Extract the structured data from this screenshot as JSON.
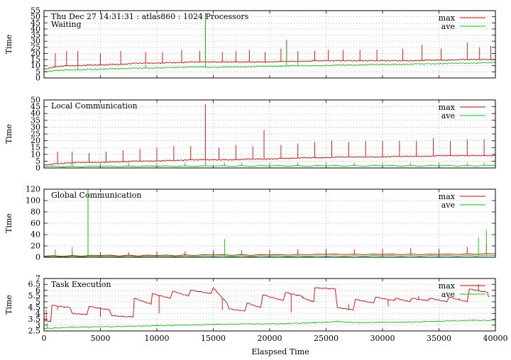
{
  "chart_data": [
    {
      "type": "line",
      "title": "Thu Dec 27 14:31:31 : atlas860 : 1024 Processors",
      "subtitle": "Waiting",
      "ylabel": "Time",
      "xlim": [
        0,
        40000
      ],
      "ylim": [
        0,
        55
      ],
      "yticks": [
        "0",
        "5",
        "10",
        "15",
        "20",
        "25",
        "30",
        "35",
        "40",
        "45",
        "50",
        "55"
      ],
      "ytick_values": [
        0,
        5,
        10,
        15,
        20,
        25,
        30,
        35,
        40,
        45,
        50,
        55
      ],
      "grid": true,
      "legend": "top-right",
      "series": [
        {
          "name": "max",
          "color": "#e00000",
          "x": [
            0,
            1000,
            2000,
            3000,
            4000,
            5000,
            6000,
            7000,
            8000,
            9000,
            10000,
            11000,
            12000,
            13000,
            14000,
            15000,
            16000,
            17000,
            18000,
            19000,
            20000,
            21000,
            22000,
            23000,
            24000,
            25000,
            26000,
            27000,
            28000,
            29000,
            30000,
            31000,
            32000,
            33000,
            34000,
            35000,
            36000,
            37000,
            38000,
            39000,
            40000
          ],
          "y": [
            7,
            9,
            10,
            10,
            10.5,
            10.5,
            11,
            11,
            12,
            12,
            12,
            12.5,
            12.5,
            13,
            13,
            13,
            13,
            13,
            13,
            13,
            13,
            13.5,
            13.5,
            13.5,
            14,
            14,
            14,
            14,
            14,
            14,
            14,
            14,
            14,
            14,
            14.5,
            14.5,
            14.5,
            15,
            15,
            15,
            15
          ],
          "spikes": [
            [
              1000,
              20
            ],
            [
              2000,
              22
            ],
            [
              3000,
              22
            ],
            [
              5000,
              20
            ],
            [
              6800,
              22
            ],
            [
              9000,
              21
            ],
            [
              10500,
              21
            ],
            [
              12200,
              23
            ],
            [
              13800,
              22
            ],
            [
              14300,
              53
            ],
            [
              15800,
              21
            ],
            [
              17000,
              22
            ],
            [
              18200,
              23
            ],
            [
              19600,
              21
            ],
            [
              21000,
              24
            ],
            [
              21500,
              31
            ],
            [
              22500,
              22
            ],
            [
              24000,
              22
            ],
            [
              25200,
              23
            ],
            [
              26500,
              23
            ],
            [
              28000,
              23
            ],
            [
              29500,
              23
            ],
            [
              31800,
              24
            ],
            [
              33500,
              27
            ],
            [
              35200,
              24
            ],
            [
              37500,
              29
            ],
            [
              38600,
              25
            ],
            [
              39600,
              26
            ]
          ]
        },
        {
          "name": "ave",
          "color": "#00cc00",
          "x": [
            0,
            1000,
            2000,
            3000,
            4000,
            5000,
            6000,
            7000,
            8000,
            9000,
            10000,
            11000,
            12000,
            13000,
            14000,
            15000,
            16000,
            17000,
            18000,
            19000,
            20000,
            21000,
            22000,
            23000,
            24000,
            25000,
            26000,
            27000,
            28000,
            29000,
            30000,
            31000,
            32000,
            33000,
            34000,
            35000,
            36000,
            37000,
            38000,
            39000,
            40000
          ],
          "y": [
            5,
            6,
            6.5,
            6.5,
            7,
            7,
            7.5,
            7.5,
            8,
            8,
            8,
            8.5,
            8.5,
            9,
            9,
            8.5,
            9,
            9,
            9,
            9.5,
            9.5,
            9.5,
            10,
            10,
            10,
            10,
            10.5,
            10.5,
            10.5,
            11,
            11,
            11,
            11,
            11.5,
            11.5,
            11.5,
            12,
            12,
            12,
            12.5,
            12.5
          ],
          "spikes": [
            [
              14300,
              50
            ],
            [
              21500,
              25
            ],
            [
              3000,
              10
            ],
            [
              9000,
              11
            ],
            [
              22500,
              19
            ]
          ]
        }
      ]
    },
    {
      "type": "line",
      "title": "Local Communication",
      "ylabel": "Time",
      "xlim": [
        0,
        40000
      ],
      "ylim": [
        0,
        50
      ],
      "yticks": [
        "0",
        "5",
        "10",
        "15",
        "20",
        "25",
        "30",
        "35",
        "40",
        "45",
        "50"
      ],
      "ytick_values": [
        0,
        5,
        10,
        15,
        20,
        25,
        30,
        35,
        40,
        45,
        50
      ],
      "grid": true,
      "legend": "top-right",
      "series": [
        {
          "name": "max",
          "color": "#e00000",
          "x": [
            0,
            1000,
            2000,
            3000,
            4000,
            5000,
            6000,
            7000,
            8000,
            9000,
            10000,
            11000,
            12000,
            13000,
            14000,
            15000,
            16000,
            17000,
            18000,
            19000,
            20000,
            21000,
            22000,
            23000,
            24000,
            25000,
            26000,
            27000,
            28000,
            29000,
            30000,
            31000,
            32000,
            33000,
            34000,
            35000,
            36000,
            37000,
            38000,
            39000,
            40000
          ],
          "y": [
            2,
            3,
            3.5,
            4,
            4,
            4,
            4.5,
            4.5,
            5,
            5,
            5,
            5.5,
            5.5,
            6,
            6,
            6,
            6,
            6,
            6.5,
            6.5,
            6.5,
            7,
            7,
            7.5,
            7.5,
            7.5,
            8,
            8,
            8,
            8,
            8,
            8.5,
            8.5,
            8.5,
            8.5,
            9,
            9,
            9,
            9,
            9,
            9
          ],
          "spikes": [
            [
              1200,
              12
            ],
            [
              2500,
              12
            ],
            [
              4000,
              11
            ],
            [
              5500,
              12
            ],
            [
              7000,
              13
            ],
            [
              8500,
              14
            ],
            [
              10000,
              15
            ],
            [
              11500,
              16
            ],
            [
              13000,
              16
            ],
            [
              14300,
              47
            ],
            [
              15500,
              15
            ],
            [
              17000,
              17
            ],
            [
              18500,
              16
            ],
            [
              19500,
              28
            ],
            [
              21000,
              17
            ],
            [
              22500,
              18
            ],
            [
              24000,
              19
            ],
            [
              25500,
              20
            ],
            [
              27000,
              19
            ],
            [
              28500,
              20
            ],
            [
              30000,
              20
            ],
            [
              31500,
              20
            ],
            [
              33000,
              20
            ],
            [
              34500,
              22
            ],
            [
              36000,
              20
            ],
            [
              37500,
              21
            ],
            [
              39000,
              21
            ]
          ]
        },
        {
          "name": "ave",
          "color": "#00cc00",
          "x": [
            0,
            5000,
            10000,
            15000,
            20000,
            25000,
            30000,
            35000,
            40000
          ],
          "y": [
            1,
            1.2,
            1.3,
            1.4,
            1.5,
            1.5,
            1.6,
            1.6,
            1.7
          ],
          "spikes": [
            [
              2500,
              4
            ],
            [
              5000,
              4
            ],
            [
              7500,
              4
            ],
            [
              10000,
              4
            ],
            [
              12500,
              4
            ],
            [
              14300,
              5
            ],
            [
              16000,
              4
            ],
            [
              17500,
              4
            ],
            [
              20000,
              4
            ],
            [
              22500,
              4
            ],
            [
              25000,
              4
            ],
            [
              27500,
              4
            ],
            [
              30000,
              4
            ],
            [
              32500,
              4
            ],
            [
              35000,
              4
            ],
            [
              37500,
              4
            ],
            [
              39000,
              4
            ]
          ]
        }
      ]
    },
    {
      "type": "line",
      "title": "Global Communication",
      "ylabel": "Time",
      "xlim": [
        0,
        40000
      ],
      "ylim": [
        0,
        120
      ],
      "yticks": [
        "0",
        "20",
        "40",
        "60",
        "80",
        "100",
        "120"
      ],
      "ytick_values": [
        0,
        20,
        40,
        60,
        80,
        100,
        120
      ],
      "grid": true,
      "legend": "top-right",
      "series": [
        {
          "name": "max",
          "color": "#e00000",
          "x": [
            0,
            5000,
            10000,
            15000,
            20000,
            25000,
            30000,
            35000,
            40000
          ],
          "y": [
            2,
            3,
            3,
            4,
            4,
            5,
            5,
            5,
            6
          ],
          "spikes": [
            [
              3900,
              118
            ],
            [
              2500,
              10
            ],
            [
              5000,
              9
            ],
            [
              7500,
              9
            ],
            [
              10000,
              10
            ],
            [
              12500,
              10
            ],
            [
              15000,
              12
            ],
            [
              17500,
              12
            ],
            [
              20000,
              13
            ],
            [
              22500,
              14
            ],
            [
              25000,
              15
            ],
            [
              27500,
              14
            ],
            [
              30000,
              15
            ],
            [
              32500,
              16
            ],
            [
              35000,
              15
            ],
            [
              37500,
              18
            ],
            [
              39200,
              25
            ]
          ]
        },
        {
          "name": "ave",
          "color": "#00cc00",
          "x": [
            0,
            5000,
            10000,
            15000,
            20000,
            25000,
            30000,
            35000,
            40000
          ],
          "y": [
            1,
            1.5,
            1.5,
            2,
            2,
            2,
            2.5,
            2.5,
            3
          ],
          "spikes": [
            [
              1000,
              14
            ],
            [
              2500,
              18
            ],
            [
              3900,
              120
            ],
            [
              16000,
              32
            ],
            [
              38500,
              35
            ],
            [
              39200,
              48
            ]
          ]
        }
      ]
    },
    {
      "type": "line",
      "title": "Task Execution",
      "ylabel": "Time",
      "xlabel": "Elaspsed Time",
      "xlim": [
        0,
        40000
      ],
      "ylim": [
        2.5,
        7
      ],
      "yticks": [
        "2.5",
        "3",
        "3.5",
        "4",
        "4.5",
        "5",
        "5.5",
        "6",
        "6.5",
        "7"
      ],
      "ytick_values": [
        2.5,
        3,
        3.5,
        4,
        4.5,
        5,
        5.5,
        6,
        6.5,
        7
      ],
      "xticks": [
        "0",
        "5000",
        "10000",
        "15000",
        "20000",
        "25000",
        "30000",
        "35000",
        "40000"
      ],
      "xtick_values": [
        0,
        5000,
        10000,
        15000,
        20000,
        25000,
        30000,
        35000,
        40000
      ],
      "grid": true,
      "legend": "top-right",
      "series": [
        {
          "name": "max",
          "color": "#e00000",
          "x": [
            0,
            600,
            700,
            2300,
            2500,
            3800,
            4000,
            5800,
            6000,
            7900,
            8000,
            9500,
            9600,
            11200,
            11400,
            12800,
            13000,
            14800,
            15000,
            16200,
            16400,
            17800,
            18000,
            19200,
            19400,
            21200,
            21400,
            22800,
            23000,
            23900,
            24000,
            25800,
            26000,
            27400,
            27600,
            29200,
            29400,
            31000,
            31200,
            32400,
            32600,
            34000,
            34200,
            35700,
            35900,
            37500,
            37700,
            39300,
            39400
          ],
          "y": [
            3.4,
            3.3,
            4.7,
            4.5,
            4.0,
            3.9,
            4.6,
            4.3,
            3.8,
            3.7,
            5.3,
            4.8,
            5.7,
            5.3,
            5.9,
            5.5,
            6.0,
            5.7,
            6.2,
            4.9,
            4.4,
            4.2,
            4.9,
            4.5,
            5.6,
            5.1,
            5.8,
            5.5,
            5.3,
            5.0,
            6.2,
            6.1,
            4.5,
            4.3,
            5.2,
            4.9,
            5.4,
            5.1,
            5.3,
            5.0,
            5.3,
            5.1,
            5.3,
            5.0,
            5.4,
            5.0,
            6.1,
            5.8,
            5.4
          ],
          "spikes": [
            [
              200,
              4.3
            ],
            [
              1200,
              4.3
            ],
            [
              5000,
              3.7
            ],
            [
              10200,
              4.0
            ],
            [
              15800,
              4.3
            ],
            [
              21900,
              4.1
            ],
            [
              27000,
              4.8
            ],
            [
              30500,
              4.6
            ],
            [
              33200,
              5.5
            ],
            [
              36800,
              5.3
            ],
            [
              38500,
              6.5
            ]
          ]
        },
        {
          "name": "ave",
          "color": "#00cc00",
          "x": [
            0,
            2000,
            5000,
            8000,
            10000,
            12000,
            15000,
            18000,
            20000,
            22000,
            24000,
            26000,
            28000,
            30000,
            32000,
            34000,
            36000,
            38000,
            40000
          ],
          "y": [
            2.7,
            2.8,
            2.85,
            2.9,
            2.95,
            3.0,
            3.05,
            3.1,
            3.1,
            3.15,
            3.2,
            3.3,
            3.2,
            3.25,
            3.25,
            3.3,
            3.35,
            3.4,
            3.4
          ],
          "spikes": [
            [
              300,
              3.2
            ],
            [
              10000,
              3.1
            ],
            [
              24000,
              3.3
            ],
            [
              26000,
              3.4
            ],
            [
              38000,
              3.5
            ]
          ]
        }
      ]
    }
  ]
}
